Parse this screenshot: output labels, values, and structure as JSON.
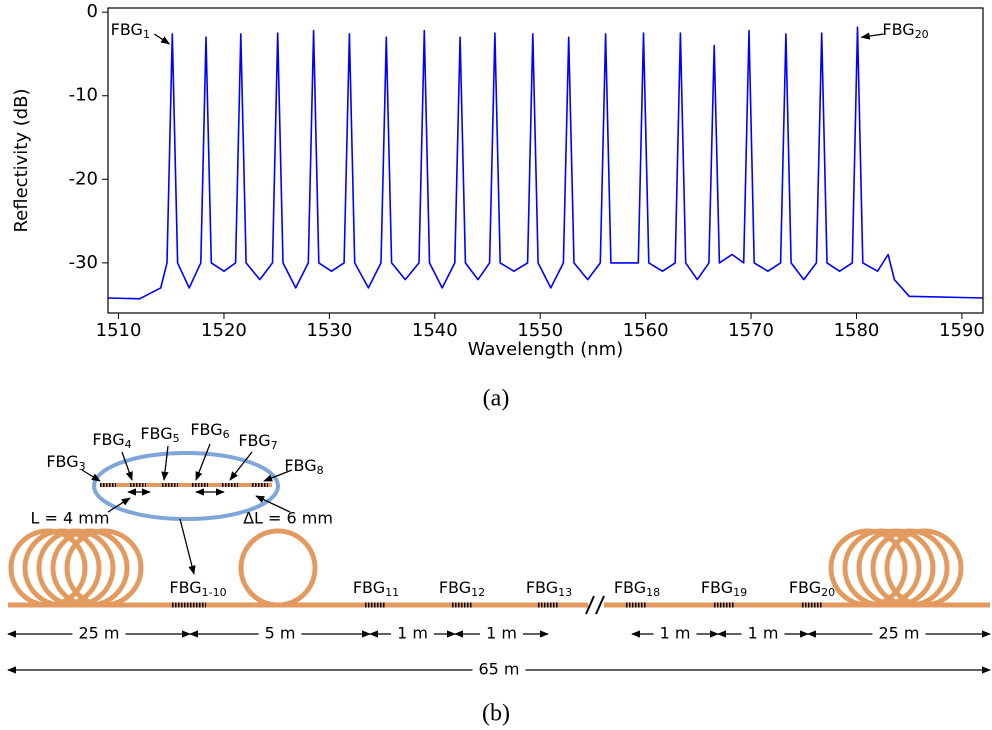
{
  "chart_data": {
    "type": "line",
    "xlabel": "Wavelength (nm)",
    "ylabel": "Reflectivity (dB)",
    "color": "#0000ff",
    "xlim": [
      1509,
      1592
    ],
    "ylim": [
      -36,
      0.5
    ],
    "xticks": [
      1510,
      1520,
      1530,
      1540,
      1550,
      1560,
      1570,
      1580,
      1590
    ],
    "yticks": [
      0,
      -10,
      -20,
      -30
    ],
    "annotations": [
      {
        "text": "FBG",
        "sub": "1",
        "x": 1515.1,
        "y": -2.6
      },
      {
        "text": "FBG",
        "sub": "20",
        "x": 1580.1,
        "y": -1.8
      }
    ],
    "x": [
      1509,
      1512,
      1514,
      1514.6,
      1515.1,
      1515.6,
      1516.7,
      1517.8,
      1518.3,
      1518.8,
      1520.0,
      1521.1,
      1521.6,
      1522.1,
      1523.4,
      1524.6,
      1525.1,
      1525.6,
      1526.8,
      1528.0,
      1528.5,
      1529.0,
      1530.2,
      1531.4,
      1531.9,
      1532.4,
      1533.7,
      1534.9,
      1535.4,
      1535.9,
      1537.2,
      1538.5,
      1539.0,
      1539.5,
      1540.7,
      1541.9,
      1542.4,
      1542.9,
      1544.1,
      1545.2,
      1545.7,
      1546.2,
      1547.5,
      1548.8,
      1549.3,
      1549.8,
      1551.0,
      1552.2,
      1552.7,
      1553.2,
      1554.5,
      1555.7,
      1556.2,
      1556.7,
      1558.0,
      1559.3,
      1559.8,
      1560.3,
      1561.6,
      1562.8,
      1563.3,
      1563.8,
      1564.9,
      1566.0,
      1566.5,
      1567.0,
      1568.2,
      1569.3,
      1569.8,
      1570.3,
      1571.6,
      1572.8,
      1573.3,
      1573.8,
      1575.0,
      1576.2,
      1576.7,
      1577.2,
      1578.4,
      1579.6,
      1580.1,
      1580.6,
      1582,
      1583,
      1583.6,
      1585,
      1592
    ],
    "values": [
      -34.2,
      -34.3,
      -33,
      -30,
      -2.6,
      -30,
      -33,
      -30,
      -3.0,
      -30,
      -31,
      -30,
      -2.6,
      -30,
      -32,
      -30,
      -2.5,
      -30,
      -33,
      -30,
      -2.2,
      -30,
      -31,
      -30,
      -2.6,
      -30,
      -33,
      -30,
      -3.0,
      -30,
      -32,
      -30,
      -2.2,
      -30,
      -33,
      -30,
      -3.0,
      -30,
      -32,
      -30,
      -2.5,
      -30,
      -31,
      -30,
      -2.6,
      -30,
      -33,
      -30,
      -3.0,
      -30,
      -32,
      -30,
      -2.6,
      -30,
      -30,
      -30,
      -2.5,
      -30,
      -31,
      -30,
      -2.5,
      -30,
      -32,
      -30,
      -4.0,
      -30,
      -29,
      -30,
      -2.2,
      -30,
      -31,
      -30,
      -2.6,
      -30,
      -32,
      -30,
      -2.5,
      -30,
      -31,
      -30,
      -1.8,
      -30,
      -31,
      -29,
      -32,
      -34,
      -34.2
    ]
  },
  "diagram": {
    "caption_a": "(a)",
    "caption_b": "(b)",
    "inset_gratings": [
      {
        "text": "FBG",
        "sub": "3"
      },
      {
        "text": "FBG",
        "sub": "4"
      },
      {
        "text": "FBG",
        "sub": "5"
      },
      {
        "text": "FBG",
        "sub": "6"
      },
      {
        "text": "FBG",
        "sub": "7"
      },
      {
        "text": "FBG",
        "sub": "8"
      }
    ],
    "inset_length": "L = 4 mm",
    "inset_spacing": "ΔL = 6 mm",
    "gratings": [
      {
        "text": "FBG",
        "sub": "1-10"
      },
      {
        "text": "FBG",
        "sub": "11"
      },
      {
        "text": "FBG",
        "sub": "12"
      },
      {
        "text": "FBG",
        "sub": "13"
      },
      {
        "text": "FBG",
        "sub": "18"
      },
      {
        "text": "FBG",
        "sub": "19"
      },
      {
        "text": "FBG",
        "sub": "20"
      }
    ],
    "segments": [
      "25 m",
      "5 m",
      "1 m",
      "1 m",
      "1 m",
      "1 m",
      "25 m"
    ],
    "total": "65 m"
  }
}
